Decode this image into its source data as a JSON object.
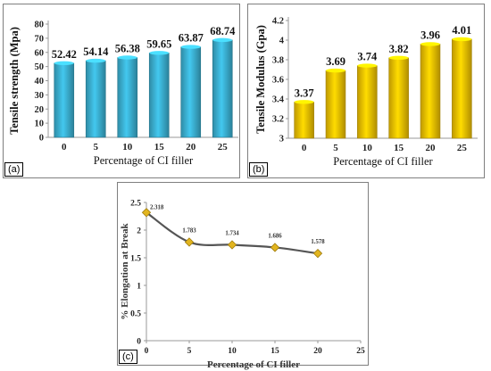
{
  "chart_data": [
    {
      "type": "bar",
      "panel_label": "(a)",
      "categories": [
        "0",
        "5",
        "10",
        "15",
        "20",
        "25"
      ],
      "values": [
        52.42,
        54.14,
        56.38,
        59.65,
        63.87,
        68.74
      ],
      "value_labels": [
        "52.42",
        "54.14",
        "56.38",
        "59.65",
        "63.87",
        "68.74"
      ],
      "xlabel": "Percentage of CI filler",
      "ylabel": "Tensile strength (Mpa)",
      "ylim": [
        0,
        80
      ],
      "yticks": [
        "0",
        "10",
        "20",
        "30",
        "40",
        "50",
        "60",
        "70",
        "80"
      ],
      "color": "#3cb3d5",
      "grid": false
    },
    {
      "type": "bar",
      "panel_label": "(b)",
      "categories": [
        "0",
        "5",
        "10",
        "15",
        "20",
        "25"
      ],
      "values": [
        3.37,
        3.69,
        3.74,
        3.82,
        3.96,
        4.01
      ],
      "value_labels": [
        "3.37",
        "3.69",
        "3.74",
        "3.82",
        "3.96",
        "4.01"
      ],
      "xlabel": "Percentage of CI filler",
      "ylabel": "Tensile Modulus (Gpa)",
      "ylim": [
        3,
        4.2
      ],
      "yticks": [
        "3",
        "3.2",
        "3.4",
        "3.6",
        "3.8",
        "4",
        "4.2"
      ],
      "color": "#f5c400",
      "grid": false
    },
    {
      "type": "line",
      "panel_label": "(c)",
      "x": [
        0,
        5,
        10,
        15,
        20
      ],
      "y": [
        2.318,
        1.783,
        1.734,
        1.686,
        1.578
      ],
      "value_labels": [
        "2.318",
        "1.783",
        "1.734",
        "1.686",
        "1.578"
      ],
      "xlabel": "Percentage of CI filler",
      "ylabel": "% Elongation at Break",
      "xlim": [
        0,
        25
      ],
      "ylim": [
        0,
        2.5
      ],
      "xticks": [
        "0",
        "5",
        "10",
        "15",
        "20",
        "25"
      ],
      "yticks": [
        "0",
        "0.5",
        "1",
        "1.5",
        "2",
        "2.5"
      ],
      "line_color": "#555555",
      "marker_color": "#e2b51f",
      "grid": false
    }
  ]
}
